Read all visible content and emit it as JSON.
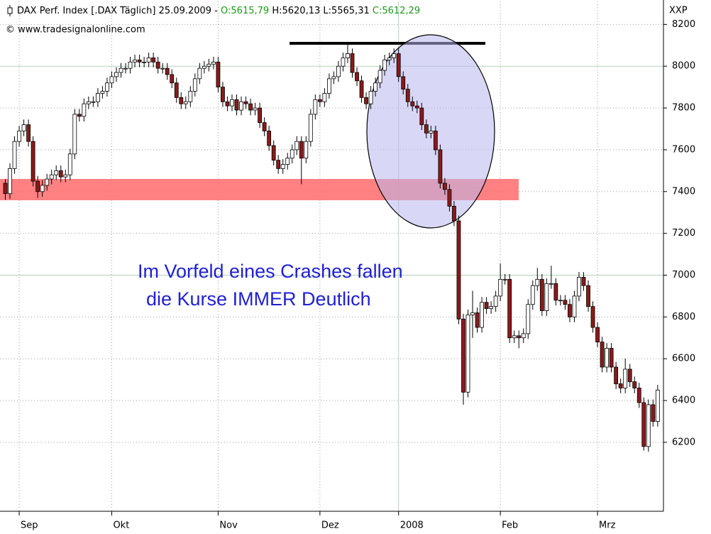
{
  "chart_data": {
    "type": "candlestick",
    "header": {
      "title": "DAX Perf. Index [.DAX  Täglich] 25.09.2009 -",
      "open_label": "O:5615,79",
      "high_low_label": "H:5620,13 L:5565,31",
      "close_label": "C:5612,29"
    },
    "source": "© www.tradesignalonline.com",
    "axis_unit": "XXP",
    "annotation": [
      "Im Vorfeld eines Crashes fallen",
      "die Kurse IMMER Deutlich"
    ],
    "up_color": "#ffffff",
    "down_color": "#8b1a1a",
    "grid": true,
    "ylim": [
      5870,
      8310
    ],
    "yticks": [
      6200,
      6400,
      6600,
      6800,
      7000,
      7200,
      7400,
      7600,
      7800,
      8000,
      8200
    ],
    "categories": [
      null,
      null,
      null,
      "Sep",
      null,
      null,
      null,
      null,
      null,
      null,
      null,
      null,
      null,
      null,
      null,
      null,
      null,
      null,
      null,
      null,
      null,
      null,
      null,
      "Okt",
      null,
      null,
      null,
      null,
      null,
      null,
      null,
      null,
      null,
      null,
      null,
      null,
      null,
      null,
      null,
      null,
      null,
      null,
      null,
      null,
      null,
      null,
      "Nov",
      null,
      null,
      null,
      null,
      null,
      null,
      null,
      null,
      null,
      null,
      null,
      null,
      null,
      null,
      null,
      null,
      null,
      null,
      null,
      null,
      null,
      "Dez",
      null,
      null,
      null,
      null,
      null,
      null,
      null,
      null,
      null,
      null,
      null,
      null,
      null,
      null,
      null,
      null,
      "2008",
      null,
      null,
      null,
      null,
      null,
      null,
      null,
      null,
      null,
      null,
      null,
      null,
      null,
      null,
      null,
      null,
      null,
      null,
      null,
      null,
      null,
      "Feb",
      null,
      null,
      null,
      null,
      null,
      null,
      null,
      null,
      null,
      null,
      null,
      null,
      null,
      null,
      null,
      null,
      null,
      null,
      null,
      null,
      "Mrz",
      null,
      null,
      null,
      null,
      null,
      null,
      null,
      null,
      null,
      null,
      null,
      null,
      null
    ],
    "ohlc": [
      [
        7440,
        7460,
        7360,
        7390
      ],
      [
        7390,
        7535,
        7365,
        7510
      ],
      [
        7510,
        7665,
        7485,
        7640
      ],
      [
        7640,
        7715,
        7615,
        7690
      ],
      [
        7690,
        7745,
        7665,
        7720
      ],
      [
        7720,
        7745,
        7615,
        7640
      ],
      [
        7640,
        7665,
        7425,
        7450
      ],
      [
        7450,
        7475,
        7370,
        7400
      ],
      [
        7400,
        7455,
        7375,
        7430
      ],
      [
        7430,
        7485,
        7405,
        7460
      ],
      [
        7460,
        7505,
        7435,
        7480
      ],
      [
        7480,
        7525,
        7455,
        7500
      ],
      [
        7500,
        7525,
        7445,
        7470
      ],
      [
        7470,
        7505,
        7445,
        7480
      ],
      [
        7480,
        7605,
        7455,
        7580
      ],
      [
        7580,
        7795,
        7555,
        7770
      ],
      [
        7770,
        7795,
        7735,
        7760
      ],
      [
        7760,
        7845,
        7735,
        7820
      ],
      [
        7820,
        7855,
        7795,
        7830
      ],
      [
        7830,
        7855,
        7805,
        7830
      ],
      [
        7830,
        7895,
        7805,
        7870
      ],
      [
        7870,
        7905,
        7845,
        7880
      ],
      [
        7880,
        7945,
        7855,
        7920
      ],
      [
        7920,
        7975,
        7895,
        7950
      ],
      [
        7950,
        7995,
        7925,
        7970
      ],
      [
        7970,
        8015,
        7945,
        7990
      ],
      [
        7990,
        8015,
        7965,
        7990
      ],
      [
        7990,
        8045,
        7965,
        8020
      ],
      [
        8020,
        8055,
        7995,
        8030
      ],
      [
        8030,
        8055,
        7995,
        8020
      ],
      [
        8020,
        8045,
        7995,
        8020
      ],
      [
        8020,
        8065,
        7995,
        8040
      ],
      [
        8040,
        8065,
        7995,
        8020
      ],
      [
        8020,
        8045,
        7965,
        7990
      ],
      [
        7990,
        8015,
        7965,
        7990
      ],
      [
        7990,
        8015,
        7935,
        7960
      ],
      [
        7960,
        7985,
        7895,
        7920
      ],
      [
        7920,
        7945,
        7825,
        7850
      ],
      [
        7850,
        7875,
        7795,
        7820
      ],
      [
        7820,
        7855,
        7795,
        7830
      ],
      [
        7830,
        7905,
        7805,
        7880
      ],
      [
        7880,
        7965,
        7855,
        7940
      ],
      [
        7940,
        8015,
        7915,
        7990
      ],
      [
        7990,
        8025,
        7965,
        8000
      ],
      [
        8000,
        8035,
        7975,
        8010
      ],
      [
        8010,
        8045,
        7985,
        8020
      ],
      [
        8020,
        8045,
        7875,
        7900
      ],
      [
        7900,
        7925,
        7805,
        7830
      ],
      [
        7830,
        7855,
        7785,
        7810
      ],
      [
        7810,
        7865,
        7785,
        7840
      ],
      [
        7840,
        7865,
        7765,
        7790
      ],
      [
        7790,
        7855,
        7765,
        7830
      ],
      [
        7830,
        7855,
        7795,
        7820
      ],
      [
        7820,
        7845,
        7765,
        7790
      ],
      [
        7790,
        7825,
        7765,
        7800
      ],
      [
        7800,
        7825,
        7705,
        7730
      ],
      [
        7730,
        7755,
        7665,
        7690
      ],
      [
        7690,
        7715,
        7595,
        7620
      ],
      [
        7620,
        7645,
        7525,
        7550
      ],
      [
        7550,
        7575,
        7485,
        7510
      ],
      [
        7510,
        7555,
        7485,
        7530
      ],
      [
        7530,
        7585,
        7505,
        7560
      ],
      [
        7560,
        7625,
        7535,
        7600
      ],
      [
        7600,
        7665,
        7575,
        7640
      ],
      [
        7640,
        7665,
        7435,
        7560
      ],
      [
        7560,
        7665,
        7535,
        7640
      ],
      [
        7640,
        7795,
        7615,
        7770
      ],
      [
        7770,
        7865,
        7745,
        7840
      ],
      [
        7840,
        7865,
        7805,
        7830
      ],
      [
        7830,
        7895,
        7805,
        7870
      ],
      [
        7870,
        7965,
        7845,
        7940
      ],
      [
        7940,
        7975,
        7915,
        7950
      ],
      [
        7950,
        8025,
        7925,
        8000
      ],
      [
        8000,
        8065,
        7975,
        8040
      ],
      [
        8040,
        8105,
        8015,
        8060
      ],
      [
        8060,
        8085,
        7945,
        7970
      ],
      [
        7970,
        7995,
        7905,
        7930
      ],
      [
        7930,
        7955,
        7825,
        7850
      ],
      [
        7850,
        7875,
        7795,
        7820
      ],
      [
        7820,
        7905,
        7795,
        7880
      ],
      [
        7880,
        7945,
        7855,
        7920
      ],
      [
        7920,
        8005,
        7895,
        7980
      ],
      [
        7980,
        8055,
        7955,
        8030
      ],
      [
        8030,
        8065,
        8005,
        8040
      ],
      [
        8040,
        8085,
        8015,
        8060
      ],
      [
        8060,
        8085,
        7925,
        7950
      ],
      [
        7950,
        7975,
        7865,
        7890
      ],
      [
        7890,
        7915,
        7805,
        7830
      ],
      [
        7830,
        7855,
        7785,
        7810
      ],
      [
        7810,
        7835,
        7775,
        7800
      ],
      [
        7800,
        7825,
        7695,
        7720
      ],
      [
        7720,
        7745,
        7655,
        7680
      ],
      [
        7680,
        7715,
        7655,
        7690
      ],
      [
        7690,
        7715,
        7575,
        7600
      ],
      [
        7600,
        7625,
        7415,
        7440
      ],
      [
        7440,
        7465,
        7385,
        7410
      ],
      [
        7410,
        7435,
        7305,
        7330
      ],
      [
        7330,
        7355,
        7235,
        7260
      ],
      [
        7260,
        7285,
        6765,
        6790
      ],
      [
        6790,
        6815,
        6380,
        6440
      ],
      [
        6440,
        6835,
        6415,
        6810
      ],
      [
        6810,
        6925,
        6700,
        6820
      ],
      [
        6820,
        6845,
        6725,
        6750
      ],
      [
        6750,
        6895,
        6725,
        6870
      ],
      [
        6870,
        6895,
        6815,
        6840
      ],
      [
        6840,
        6875,
        6815,
        6850
      ],
      [
        6850,
        6925,
        6825,
        6900
      ],
      [
        6900,
        7055,
        6875,
        6980
      ],
      [
        6980,
        7005,
        6955,
        6980
      ],
      [
        6980,
        7005,
        6675,
        6700
      ],
      [
        6700,
        6735,
        6675,
        6710
      ],
      [
        6710,
        6735,
        6650,
        6700
      ],
      [
        6700,
        6745,
        6675,
        6720
      ],
      [
        6720,
        6885,
        6695,
        6860
      ],
      [
        6860,
        6975,
        6835,
        6950
      ],
      [
        6950,
        7035,
        6925,
        6980
      ],
      [
        6980,
        7005,
        6805,
        6830
      ],
      [
        6830,
        6985,
        6805,
        6960
      ],
      [
        6960,
        7045,
        6935,
        6960
      ],
      [
        6960,
        6985,
        6855,
        6880
      ],
      [
        6880,
        6905,
        6855,
        6880
      ],
      [
        6880,
        6905,
        6835,
        6860
      ],
      [
        6860,
        6885,
        6775,
        6800
      ],
      [
        6800,
        6925,
        6775,
        6900
      ],
      [
        6900,
        7015,
        6875,
        6990
      ],
      [
        6990,
        7015,
        6925,
        6950
      ],
      [
        6950,
        6975,
        6825,
        6850
      ],
      [
        6850,
        6875,
        6725,
        6750
      ],
      [
        6750,
        6775,
        6655,
        6680
      ],
      [
        6680,
        6705,
        6535,
        6560
      ],
      [
        6560,
        6675,
        6535,
        6650
      ],
      [
        6650,
        6675,
        6535,
        6560
      ],
      [
        6560,
        6585,
        6455,
        6480
      ],
      [
        6480,
        6505,
        6435,
        6460
      ],
      [
        6460,
        6600,
        6435,
        6550
      ],
      [
        6550,
        6575,
        6465,
        6490
      ],
      [
        6490,
        6515,
        6435,
        6460
      ],
      [
        6460,
        6485,
        6365,
        6390
      ],
      [
        6390,
        6415,
        6160,
        6180
      ],
      [
        6180,
        6405,
        6155,
        6380
      ],
      [
        6380,
        6405,
        6275,
        6300
      ],
      [
        6300,
        6475,
        6275,
        6450
      ]
    ]
  }
}
